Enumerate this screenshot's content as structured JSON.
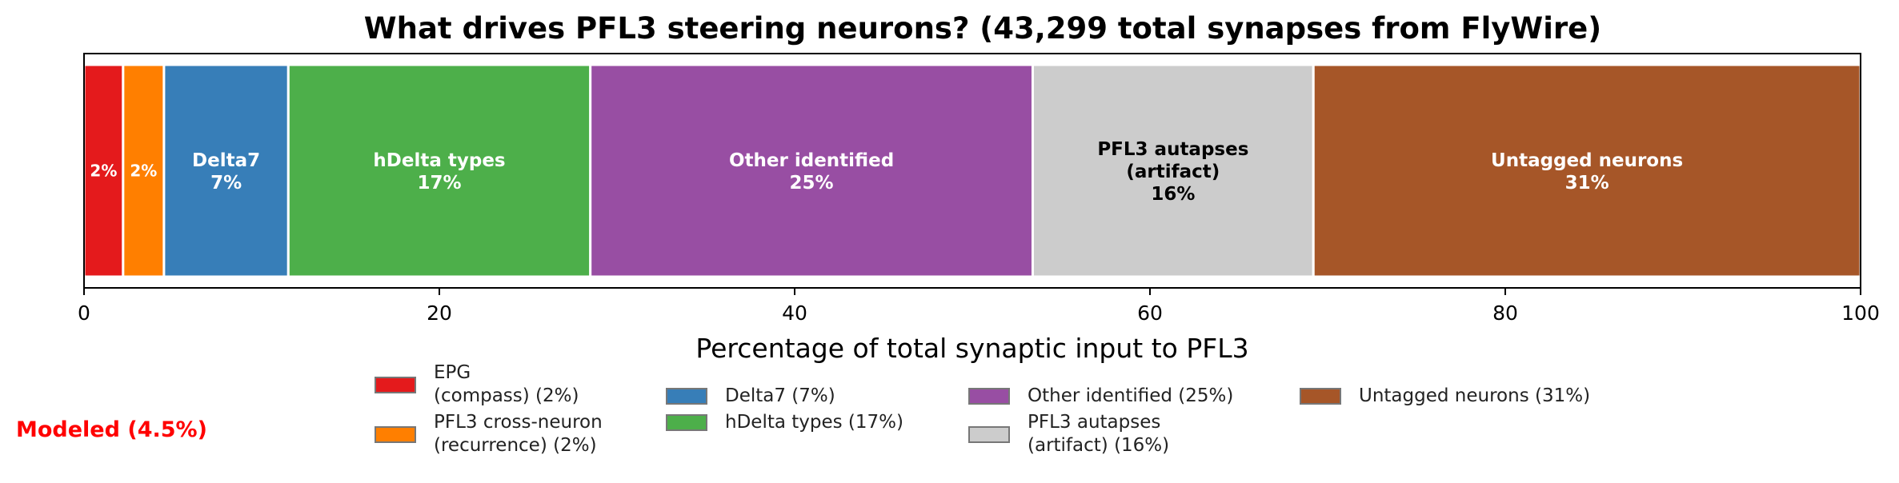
{
  "chart_data": {
    "type": "bar",
    "orientation": "horizontal-stacked",
    "title": "What drives PFL3 steering neurons?  (43,299 total synapses from FlyWire)",
    "xlabel": "Percentage of total synaptic input to PFL3",
    "xlim": [
      0,
      100
    ],
    "xticks": [
      "0",
      "20",
      "40",
      "60",
      "80",
      "100"
    ],
    "grid": false,
    "legend_position": "bottom",
    "segments": [
      {
        "name": "EPG (compass)",
        "value": 2.2,
        "bar_label": "2%",
        "legend_label": "EPG\n(compass) (2%)",
        "color": "#e41a1c",
        "text_color": "#ffffff"
      },
      {
        "name": "PFL3 cross-neuron (recurrence)",
        "value": 2.3,
        "bar_label": "2%",
        "legend_label": "PFL3 cross-neuron\n(recurrence) (2%)",
        "color": "#ff7f00",
        "text_color": "#ffffff"
      },
      {
        "name": "Delta7",
        "value": 7.0,
        "bar_label": "Delta7\n7%",
        "legend_label": "Delta7 (7%)",
        "color": "#377eb8",
        "text_color": "#ffffff"
      },
      {
        "name": "hDelta types",
        "value": 17.0,
        "bar_label": "hDelta types\n17%",
        "legend_label": "hDelta types (17%)",
        "color": "#4daf4a",
        "text_color": "#ffffff"
      },
      {
        "name": "Other identified",
        "value": 24.9,
        "bar_label": "Other identified\n25%",
        "legend_label": "Other identified (25%)",
        "color": "#984ea3",
        "text_color": "#ffffff"
      },
      {
        "name": "PFL3 autapses (artifact)",
        "value": 15.8,
        "bar_label": "PFL3 autapses\n(artifact)\n16%",
        "legend_label": "PFL3 autapses\n(artifact) (16%)",
        "color": "#cccccc",
        "text_color": "#000000"
      },
      {
        "name": "Untagged neurons",
        "value": 30.8,
        "bar_label": "Untagged neurons\n31%",
        "legend_label": "Untagged neurons (31%)",
        "color": "#a65628",
        "text_color": "#ffffff"
      }
    ]
  },
  "annotation": {
    "modeled_label": "Modeled (4.5%)",
    "color": "#ff0000"
  }
}
